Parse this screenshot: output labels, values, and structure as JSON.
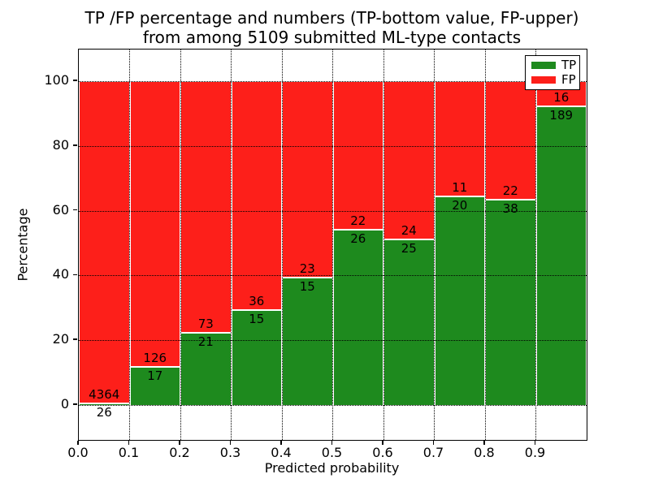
{
  "figure": {
    "title_line1": "TP /FP percentage and numbers (TP-bottom value, FP-upper)",
    "title_line2": "from among 5109 submitted ML-type contacts",
    "xlabel": "Predicted probability",
    "ylabel": "Percentage"
  },
  "legend": {
    "position": "upper-right",
    "items": [
      {
        "label": "TP",
        "color": "#1e8a1e"
      },
      {
        "label": "FP",
        "color": "#fd1f1a"
      }
    ]
  },
  "chart_data": {
    "type": "bar",
    "stacked": true,
    "normalized": "each bar scaled to 100%",
    "title": "TP /FP percentage and numbers (TP-bottom value, FP-upper) from among 5109 submitted ML-type contacts",
    "xlabel": "Predicted probability",
    "ylabel": "Percentage",
    "total_contacts": 5109,
    "bin_width": 0.1,
    "bin_starts": [
      0.0,
      0.1,
      0.2,
      0.3,
      0.4,
      0.5,
      0.6,
      0.7,
      0.8,
      0.9
    ],
    "series": [
      {
        "name": "TP",
        "color": "#1e8a1e",
        "counts": [
          26,
          17,
          21,
          15,
          15,
          26,
          25,
          20,
          38,
          189
        ]
      },
      {
        "name": "FP",
        "color": "#fd1f1a",
        "counts": [
          4364,
          126,
          73,
          36,
          23,
          22,
          24,
          11,
          22,
          16
        ]
      }
    ],
    "tp_percent_of_bin": [
      0.59,
      11.89,
      22.34,
      29.41,
      39.47,
      54.17,
      51.02,
      64.52,
      63.33,
      92.2
    ],
    "xtick_labels": [
      "0.0",
      "0.1",
      "0.2",
      "0.3",
      "0.4",
      "0.5",
      "0.6",
      "0.7",
      "0.8",
      "0.9"
    ],
    "ytick_values": [
      0,
      20,
      40,
      60,
      80,
      100
    ],
    "xlim": [
      0.0,
      1.0
    ],
    "grid": "dotted black, horizontal at y-ticks and vertical at x-ticks, drawn above bars",
    "bar_edge_color": "#ffffff",
    "legend_position": "upper right"
  }
}
